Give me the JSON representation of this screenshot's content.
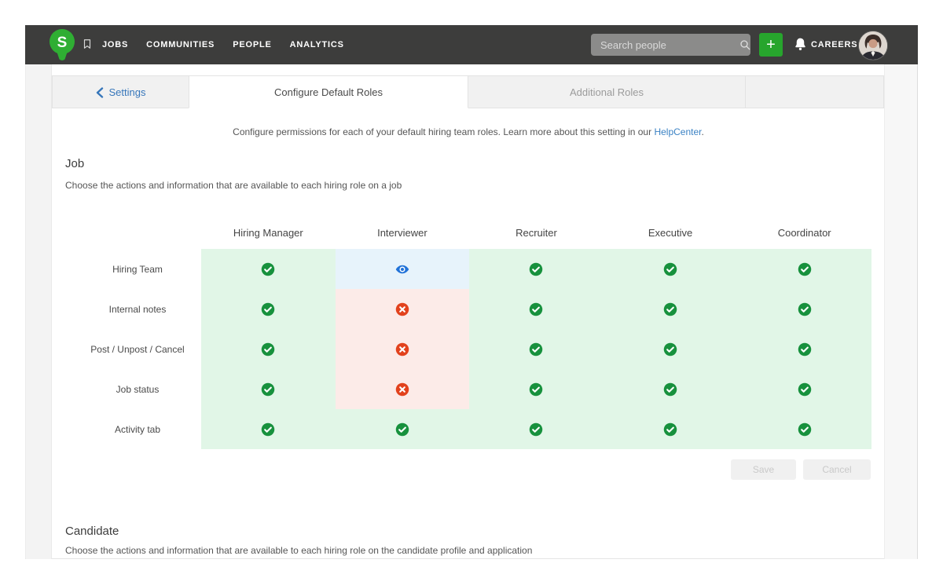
{
  "navbar": {
    "logo_letter": "S",
    "items": [
      {
        "label": "JOBS"
      },
      {
        "label": "COMMUNITIES"
      },
      {
        "label": "PEOPLE"
      },
      {
        "label": "ANALYTICS"
      }
    ],
    "search_placeholder": "Search people",
    "add_button_label": "+",
    "careers_label": "CAREERS"
  },
  "tabs": {
    "back_label": "Settings",
    "active_label": "Configure Default Roles",
    "secondary_label": "Additional Roles"
  },
  "intro": {
    "text": "Configure permissions for each of your default hiring team roles. Learn more about this setting in our",
    "link_label": "HelpCenter",
    "suffix": "."
  },
  "job_section": {
    "title": "Job",
    "description": "Choose the actions and information that are available to each hiring role on a job"
  },
  "candidate_section": {
    "title": "Candidate",
    "description": "Choose the actions and information that are available to each hiring role on the candidate profile and application"
  },
  "actions": {
    "save_label": "Save",
    "cancel_label": "Cancel"
  },
  "matrix": {
    "columns": [
      "Hiring Manager",
      "Interviewer",
      "Recruiter",
      "Executive",
      "Coordinator"
    ],
    "rows": [
      {
        "label": "Hiring Team",
        "cells": [
          "allowed",
          "view-only",
          "allowed",
          "allowed",
          "allowed"
        ]
      },
      {
        "label": "Internal notes",
        "cells": [
          "allowed",
          "denied",
          "allowed",
          "allowed",
          "allowed"
        ]
      },
      {
        "label": "Post / Unpost / Cancel",
        "cells": [
          "allowed",
          "denied",
          "allowed",
          "allowed",
          "allowed"
        ]
      },
      {
        "label": "Job status",
        "cells": [
          "allowed",
          "denied",
          "allowed",
          "allowed",
          "allowed"
        ]
      },
      {
        "label": "Activity tab",
        "cells": [
          "allowed",
          "allowed",
          "allowed",
          "allowed",
          "allowed"
        ]
      }
    ]
  },
  "icons": {
    "allowed": "check-circle-icon",
    "view-only": "eye-icon",
    "denied": "x-circle-icon"
  },
  "colors": {
    "navbar_bg": "#3d3d3c",
    "brand_green": "#2fae33",
    "add_button_green": "#27a52d",
    "check_green": "#17913d",
    "deny_red": "#e2421d",
    "eye_blue": "#2172d8",
    "cell_green_bg": "#e1f6e7",
    "cell_blue_bg": "#e7f3fb",
    "cell_red_bg": "#fcebe8",
    "link_blue": "#3b82c4"
  }
}
